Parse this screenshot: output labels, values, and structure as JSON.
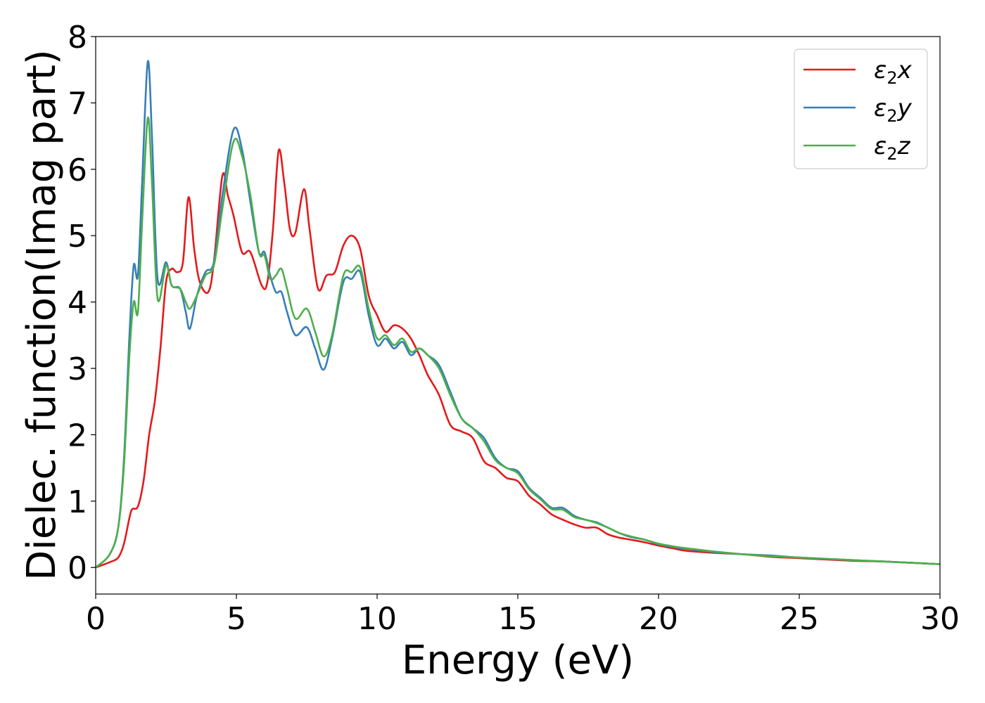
{
  "chart_data": {
    "type": "line",
    "title": "",
    "xlabel": "Energy (eV)",
    "ylabel": "Dielec. function(Imag part)",
    "xlim": [
      0,
      30
    ],
    "ylim": [
      -0.4,
      8
    ],
    "xticks": [
      "0",
      "5",
      "10",
      "15",
      "20",
      "25",
      "30"
    ],
    "yticks": [
      "0",
      "1",
      "2",
      "3",
      "4",
      "5",
      "6",
      "7",
      "8"
    ],
    "grid": false,
    "legend_position": "top-right",
    "series": [
      {
        "name": "ε2x",
        "legend_base": "ε",
        "legend_sub": "2",
        "legend_var": "x",
        "color": "#e41a1c",
        "points": [
          [
            0,
            0
          ],
          [
            0.5,
            0.08
          ],
          [
            0.8,
            0.15
          ],
          [
            1.0,
            0.35
          ],
          [
            1.2,
            0.75
          ],
          [
            1.3,
            0.88
          ],
          [
            1.5,
            0.92
          ],
          [
            1.7,
            1.3
          ],
          [
            1.9,
            2.0
          ],
          [
            2.1,
            2.5
          ],
          [
            2.3,
            3.3
          ],
          [
            2.5,
            4.3
          ],
          [
            2.7,
            4.5
          ],
          [
            2.9,
            4.45
          ],
          [
            3.1,
            4.6
          ],
          [
            3.3,
            5.58
          ],
          [
            3.5,
            4.8
          ],
          [
            3.7,
            4.3
          ],
          [
            4.0,
            4.15
          ],
          [
            4.2,
            4.6
          ],
          [
            4.5,
            5.9
          ],
          [
            4.7,
            5.6
          ],
          [
            4.9,
            5.3
          ],
          [
            5.2,
            4.75
          ],
          [
            5.5,
            4.75
          ],
          [
            5.9,
            4.25
          ],
          [
            6.1,
            4.3
          ],
          [
            6.3,
            5.1
          ],
          [
            6.5,
            6.28
          ],
          [
            6.7,
            5.8
          ],
          [
            6.9,
            5.1
          ],
          [
            7.1,
            5.05
          ],
          [
            7.4,
            5.7
          ],
          [
            7.6,
            5.1
          ],
          [
            7.9,
            4.2
          ],
          [
            8.2,
            4.4
          ],
          [
            8.5,
            4.45
          ],
          [
            8.8,
            4.85
          ],
          [
            9.1,
            5.0
          ],
          [
            9.4,
            4.8
          ],
          [
            9.7,
            4.1
          ],
          [
            10.0,
            3.8
          ],
          [
            10.3,
            3.55
          ],
          [
            10.6,
            3.65
          ],
          [
            10.9,
            3.6
          ],
          [
            11.2,
            3.45
          ],
          [
            11.5,
            3.2
          ],
          [
            11.8,
            2.9
          ],
          [
            12.2,
            2.6
          ],
          [
            12.6,
            2.15
          ],
          [
            13.0,
            2.05
          ],
          [
            13.4,
            1.95
          ],
          [
            13.8,
            1.6
          ],
          [
            14.2,
            1.5
          ],
          [
            14.6,
            1.35
          ],
          [
            15.0,
            1.3
          ],
          [
            15.4,
            1.08
          ],
          [
            15.8,
            0.95
          ],
          [
            16.2,
            0.8
          ],
          [
            16.6,
            0.72
          ],
          [
            17.0,
            0.65
          ],
          [
            17.4,
            0.6
          ],
          [
            17.8,
            0.6
          ],
          [
            18.2,
            0.5
          ],
          [
            18.6,
            0.45
          ],
          [
            19.0,
            0.42
          ],
          [
            19.5,
            0.38
          ],
          [
            20.0,
            0.33
          ],
          [
            20.5,
            0.29
          ],
          [
            21.0,
            0.25
          ],
          [
            22.0,
            0.22
          ],
          [
            23.0,
            0.2
          ],
          [
            24.0,
            0.16
          ],
          [
            25.0,
            0.14
          ],
          [
            26.0,
            0.12
          ],
          [
            27.0,
            0.1
          ],
          [
            28.0,
            0.09
          ],
          [
            29.0,
            0.07
          ],
          [
            30.0,
            0.05
          ]
        ]
      },
      {
        "name": "ε2y",
        "legend_base": "ε",
        "legend_sub": "2",
        "legend_var": "y",
        "color": "#377eb8",
        "points": [
          [
            0,
            0
          ],
          [
            0.5,
            0.2
          ],
          [
            0.8,
            0.6
          ],
          [
            1.0,
            1.6
          ],
          [
            1.2,
            3.5
          ],
          [
            1.35,
            4.55
          ],
          [
            1.5,
            4.4
          ],
          [
            1.65,
            5.8
          ],
          [
            1.85,
            7.62
          ],
          [
            2.0,
            6.5
          ],
          [
            2.2,
            4.35
          ],
          [
            2.5,
            4.6
          ],
          [
            2.7,
            4.25
          ],
          [
            3.0,
            4.2
          ],
          [
            3.2,
            3.85
          ],
          [
            3.35,
            3.6
          ],
          [
            3.6,
            4.1
          ],
          [
            3.9,
            4.45
          ],
          [
            4.2,
            4.6
          ],
          [
            4.5,
            5.6
          ],
          [
            4.9,
            6.6
          ],
          [
            5.2,
            6.3
          ],
          [
            5.5,
            5.5
          ],
          [
            5.8,
            4.75
          ],
          [
            6.0,
            4.75
          ],
          [
            6.2,
            4.4
          ],
          [
            6.4,
            4.15
          ],
          [
            6.6,
            4.15
          ],
          [
            6.8,
            3.85
          ],
          [
            7.1,
            3.5
          ],
          [
            7.5,
            3.62
          ],
          [
            7.8,
            3.3
          ],
          [
            8.1,
            2.98
          ],
          [
            8.4,
            3.45
          ],
          [
            8.8,
            4.3
          ],
          [
            9.1,
            4.35
          ],
          [
            9.4,
            4.45
          ],
          [
            9.7,
            3.8
          ],
          [
            10.0,
            3.35
          ],
          [
            10.3,
            3.45
          ],
          [
            10.6,
            3.3
          ],
          [
            10.9,
            3.4
          ],
          [
            11.2,
            3.2
          ],
          [
            11.5,
            3.3
          ],
          [
            11.8,
            3.2
          ],
          [
            12.2,
            3.05
          ],
          [
            12.6,
            2.65
          ],
          [
            13.0,
            2.25
          ],
          [
            13.4,
            2.1
          ],
          [
            13.8,
            1.95
          ],
          [
            14.2,
            1.65
          ],
          [
            14.6,
            1.5
          ],
          [
            15.0,
            1.45
          ],
          [
            15.4,
            1.2
          ],
          [
            15.8,
            1.05
          ],
          [
            16.2,
            0.9
          ],
          [
            16.6,
            0.9
          ],
          [
            17.0,
            0.78
          ],
          [
            17.4,
            0.72
          ],
          [
            17.8,
            0.68
          ],
          [
            18.2,
            0.6
          ],
          [
            18.6,
            0.52
          ],
          [
            19.0,
            0.46
          ],
          [
            19.5,
            0.42
          ],
          [
            20.0,
            0.35
          ],
          [
            20.5,
            0.31
          ],
          [
            21.0,
            0.28
          ],
          [
            22.0,
            0.23
          ],
          [
            23.0,
            0.2
          ],
          [
            24.0,
            0.18
          ],
          [
            25.0,
            0.15
          ],
          [
            26.0,
            0.13
          ],
          [
            27.0,
            0.11
          ],
          [
            28.0,
            0.09
          ],
          [
            29.0,
            0.07
          ],
          [
            30.0,
            0.05
          ]
        ]
      },
      {
        "name": "ε2z",
        "legend_base": "ε",
        "legend_sub": "2",
        "legend_var": "z",
        "color": "#4daf4a",
        "points": [
          [
            0,
            0
          ],
          [
            0.5,
            0.2
          ],
          [
            0.8,
            0.6
          ],
          [
            1.0,
            1.5
          ],
          [
            1.2,
            3.2
          ],
          [
            1.35,
            4.0
          ],
          [
            1.5,
            3.85
          ],
          [
            1.65,
            5.2
          ],
          [
            1.85,
            6.77
          ],
          [
            2.0,
            5.8
          ],
          [
            2.2,
            4.05
          ],
          [
            2.5,
            4.55
          ],
          [
            2.7,
            4.25
          ],
          [
            3.0,
            4.2
          ],
          [
            3.2,
            4.0
          ],
          [
            3.35,
            3.9
          ],
          [
            3.6,
            4.1
          ],
          [
            3.9,
            4.4
          ],
          [
            4.2,
            4.55
          ],
          [
            4.5,
            5.4
          ],
          [
            4.9,
            6.42
          ],
          [
            5.2,
            6.2
          ],
          [
            5.5,
            5.6
          ],
          [
            5.8,
            4.75
          ],
          [
            6.0,
            4.7
          ],
          [
            6.2,
            4.35
          ],
          [
            6.4,
            4.4
          ],
          [
            6.6,
            4.5
          ],
          [
            6.8,
            4.2
          ],
          [
            7.1,
            3.75
          ],
          [
            7.5,
            3.9
          ],
          [
            7.8,
            3.55
          ],
          [
            8.1,
            3.18
          ],
          [
            8.4,
            3.5
          ],
          [
            8.8,
            4.4
          ],
          [
            9.1,
            4.45
          ],
          [
            9.4,
            4.52
          ],
          [
            9.7,
            3.9
          ],
          [
            10.0,
            3.45
          ],
          [
            10.3,
            3.5
          ],
          [
            10.6,
            3.35
          ],
          [
            10.9,
            3.45
          ],
          [
            11.2,
            3.25
          ],
          [
            11.5,
            3.3
          ],
          [
            11.8,
            3.2
          ],
          [
            12.2,
            3.0
          ],
          [
            12.6,
            2.6
          ],
          [
            13.0,
            2.25
          ],
          [
            13.4,
            2.1
          ],
          [
            13.8,
            1.9
          ],
          [
            14.2,
            1.62
          ],
          [
            14.6,
            1.5
          ],
          [
            15.0,
            1.42
          ],
          [
            15.4,
            1.18
          ],
          [
            15.8,
            1.03
          ],
          [
            16.2,
            0.88
          ],
          [
            16.6,
            0.87
          ],
          [
            17.0,
            0.76
          ],
          [
            17.4,
            0.72
          ],
          [
            17.8,
            0.67
          ],
          [
            18.2,
            0.6
          ],
          [
            18.6,
            0.52
          ],
          [
            19.0,
            0.47
          ],
          [
            19.5,
            0.42
          ],
          [
            20.0,
            0.36
          ],
          [
            20.5,
            0.32
          ],
          [
            21.0,
            0.29
          ],
          [
            22.0,
            0.24
          ],
          [
            23.0,
            0.2
          ],
          [
            24.0,
            0.17
          ],
          [
            25.0,
            0.15
          ],
          [
            26.0,
            0.13
          ],
          [
            27.0,
            0.11
          ],
          [
            28.0,
            0.09
          ],
          [
            29.0,
            0.07
          ],
          [
            30.0,
            0.05
          ]
        ]
      }
    ]
  }
}
